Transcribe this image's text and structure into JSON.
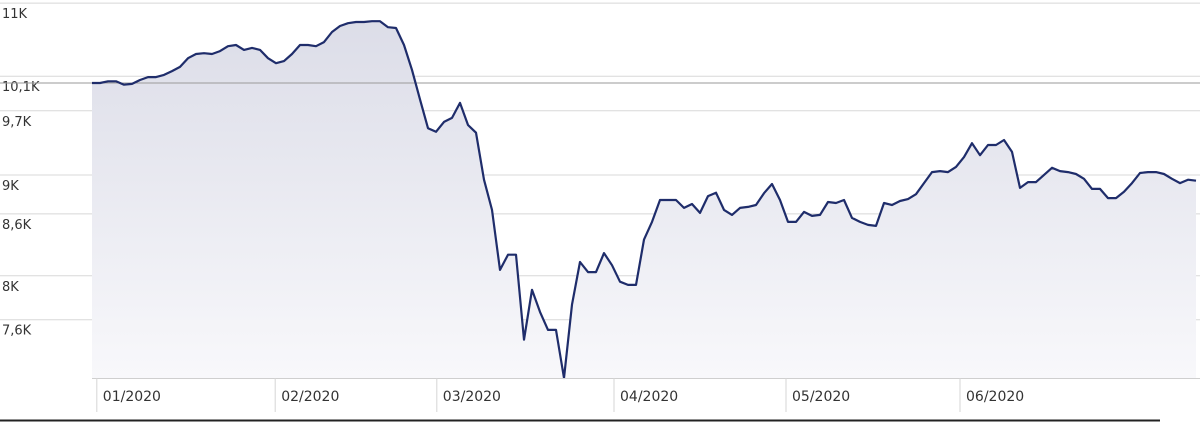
{
  "chart_data": {
    "type": "line",
    "log_scale": true,
    "grid": true,
    "color": "#1f2d6b",
    "values": [
      10020,
      10020,
      10040,
      10040,
      10000,
      10010,
      10055,
      10090,
      10090,
      10115,
      10160,
      10210,
      10315,
      10365,
      10375,
      10365,
      10400,
      10460,
      10475,
      10415,
      10440,
      10415,
      10315,
      10255,
      10280,
      10365,
      10475,
      10475,
      10460,
      10510,
      10635,
      10710,
      10745,
      10760,
      10760,
      10770,
      10770,
      10695,
      10685,
      10475,
      10175,
      9830,
      9505,
      9465,
      9575,
      9620,
      9790,
      9540,
      9455,
      8950,
      8640,
      8055,
      8200,
      8200,
      7425,
      7870,
      7670,
      7510,
      7510,
      7100,
      7735,
      8130,
      8035,
      8035,
      8215,
      8100,
      7945,
      7915,
      7915,
      8345,
      8520,
      8740,
      8740,
      8740,
      8660,
      8700,
      8610,
      8780,
      8815,
      8640,
      8590,
      8660,
      8670,
      8690,
      8810,
      8905,
      8740,
      8520,
      8520,
      8620,
      8580,
      8590,
      8720,
      8710,
      8740,
      8560,
      8520,
      8490,
      8480,
      8710,
      8690,
      8730,
      8750,
      8800,
      8915,
      9030,
      9040,
      9030,
      9085,
      9190,
      9340,
      9210,
      9320,
      9320,
      9375,
      9245,
      8865,
      8925,
      8925,
      9000,
      9075,
      9040,
      9030,
      9010,
      8960,
      8855,
      8855,
      8760,
      8760,
      8825,
      8915,
      9020,
      9030,
      9030,
      9010,
      8960,
      8915,
      8950,
      8940
    ],
    "xlim": [
      0,
      138
    ],
    "xticks": [
      {
        "value": 0.6,
        "label": "01/2020"
      },
      {
        "value": 22.9,
        "label": "02/2020"
      },
      {
        "value": 43.1,
        "label": "03/2020"
      },
      {
        "value": 65.25,
        "label": "04/2020"
      },
      {
        "value": 86.75,
        "label": "05/2020"
      },
      {
        "value": 108.5,
        "label": "06/2020"
      }
    ],
    "ylim": [
      7100,
      11040
    ],
    "yticks": [
      {
        "value": 11000,
        "label": "11K"
      },
      {
        "value": 10100,
        "label": "10,1K"
      },
      {
        "value": 9700,
        "label": "9,7K"
      },
      {
        "value": 9000,
        "label": "9K"
      },
      {
        "value": 8600,
        "label": "8,6K"
      },
      {
        "value": 8000,
        "label": "8K"
      },
      {
        "value": 7600,
        "label": "7,6K"
      }
    ]
  }
}
